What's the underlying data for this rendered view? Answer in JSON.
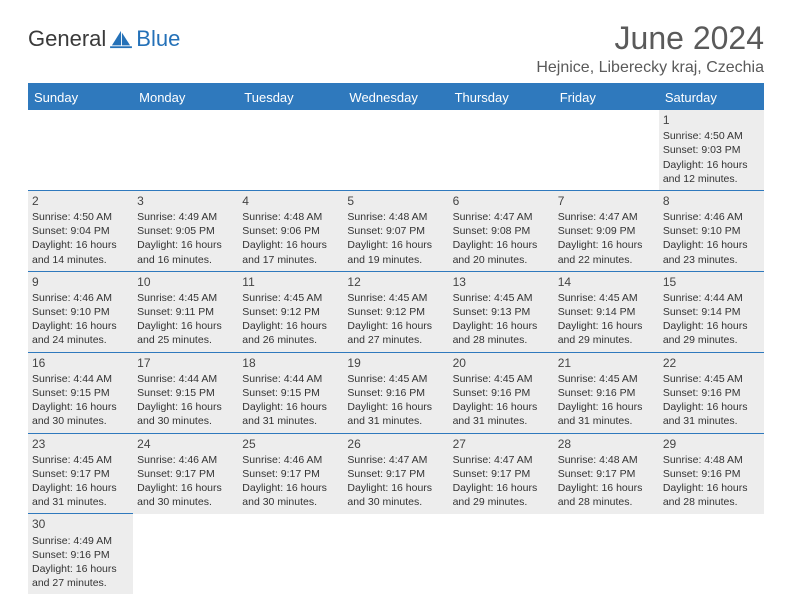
{
  "logo": {
    "general": "General",
    "blue": "Blue"
  },
  "title": "June 2024",
  "location": "Hejnice, Liberecky kraj, Czechia",
  "day_headers": [
    "Sunday",
    "Monday",
    "Tuesday",
    "Wednesday",
    "Thursday",
    "Friday",
    "Saturday"
  ],
  "colors": {
    "header_bg": "#2f79bd",
    "header_text": "#ffffff",
    "shade": "#ededed",
    "border": "#2f79bd",
    "logo_blue": "#2471b8",
    "text": "#333333"
  },
  "weeks": [
    [
      null,
      null,
      null,
      null,
      null,
      null,
      {
        "n": "1",
        "sr": "4:50 AM",
        "ss": "9:03 PM",
        "dl": "16 hours and 12 minutes."
      }
    ],
    [
      {
        "n": "2",
        "sr": "4:50 AM",
        "ss": "9:04 PM",
        "dl": "16 hours and 14 minutes."
      },
      {
        "n": "3",
        "sr": "4:49 AM",
        "ss": "9:05 PM",
        "dl": "16 hours and 16 minutes."
      },
      {
        "n": "4",
        "sr": "4:48 AM",
        "ss": "9:06 PM",
        "dl": "16 hours and 17 minutes."
      },
      {
        "n": "5",
        "sr": "4:48 AM",
        "ss": "9:07 PM",
        "dl": "16 hours and 19 minutes."
      },
      {
        "n": "6",
        "sr": "4:47 AM",
        "ss": "9:08 PM",
        "dl": "16 hours and 20 minutes."
      },
      {
        "n": "7",
        "sr": "4:47 AM",
        "ss": "9:09 PM",
        "dl": "16 hours and 22 minutes."
      },
      {
        "n": "8",
        "sr": "4:46 AM",
        "ss": "9:10 PM",
        "dl": "16 hours and 23 minutes."
      }
    ],
    [
      {
        "n": "9",
        "sr": "4:46 AM",
        "ss": "9:10 PM",
        "dl": "16 hours and 24 minutes."
      },
      {
        "n": "10",
        "sr": "4:45 AM",
        "ss": "9:11 PM",
        "dl": "16 hours and 25 minutes."
      },
      {
        "n": "11",
        "sr": "4:45 AM",
        "ss": "9:12 PM",
        "dl": "16 hours and 26 minutes."
      },
      {
        "n": "12",
        "sr": "4:45 AM",
        "ss": "9:12 PM",
        "dl": "16 hours and 27 minutes."
      },
      {
        "n": "13",
        "sr": "4:45 AM",
        "ss": "9:13 PM",
        "dl": "16 hours and 28 minutes."
      },
      {
        "n": "14",
        "sr": "4:45 AM",
        "ss": "9:14 PM",
        "dl": "16 hours and 29 minutes."
      },
      {
        "n": "15",
        "sr": "4:44 AM",
        "ss": "9:14 PM",
        "dl": "16 hours and 29 minutes."
      }
    ],
    [
      {
        "n": "16",
        "sr": "4:44 AM",
        "ss": "9:15 PM",
        "dl": "16 hours and 30 minutes."
      },
      {
        "n": "17",
        "sr": "4:44 AM",
        "ss": "9:15 PM",
        "dl": "16 hours and 30 minutes."
      },
      {
        "n": "18",
        "sr": "4:44 AM",
        "ss": "9:15 PM",
        "dl": "16 hours and 31 minutes."
      },
      {
        "n": "19",
        "sr": "4:45 AM",
        "ss": "9:16 PM",
        "dl": "16 hours and 31 minutes."
      },
      {
        "n": "20",
        "sr": "4:45 AM",
        "ss": "9:16 PM",
        "dl": "16 hours and 31 minutes."
      },
      {
        "n": "21",
        "sr": "4:45 AM",
        "ss": "9:16 PM",
        "dl": "16 hours and 31 minutes."
      },
      {
        "n": "22",
        "sr": "4:45 AM",
        "ss": "9:16 PM",
        "dl": "16 hours and 31 minutes."
      }
    ],
    [
      {
        "n": "23",
        "sr": "4:45 AM",
        "ss": "9:17 PM",
        "dl": "16 hours and 31 minutes."
      },
      {
        "n": "24",
        "sr": "4:46 AM",
        "ss": "9:17 PM",
        "dl": "16 hours and 30 minutes."
      },
      {
        "n": "25",
        "sr": "4:46 AM",
        "ss": "9:17 PM",
        "dl": "16 hours and 30 minutes."
      },
      {
        "n": "26",
        "sr": "4:47 AM",
        "ss": "9:17 PM",
        "dl": "16 hours and 30 minutes."
      },
      {
        "n": "27",
        "sr": "4:47 AM",
        "ss": "9:17 PM",
        "dl": "16 hours and 29 minutes."
      },
      {
        "n": "28",
        "sr": "4:48 AM",
        "ss": "9:17 PM",
        "dl": "16 hours and 28 minutes."
      },
      {
        "n": "29",
        "sr": "4:48 AM",
        "ss": "9:16 PM",
        "dl": "16 hours and 28 minutes."
      }
    ],
    [
      {
        "n": "30",
        "sr": "4:49 AM",
        "ss": "9:16 PM",
        "dl": "16 hours and 27 minutes."
      },
      null,
      null,
      null,
      null,
      null,
      null
    ]
  ],
  "labels": {
    "sunrise": "Sunrise:",
    "sunset": "Sunset:",
    "daylight": "Daylight:"
  }
}
